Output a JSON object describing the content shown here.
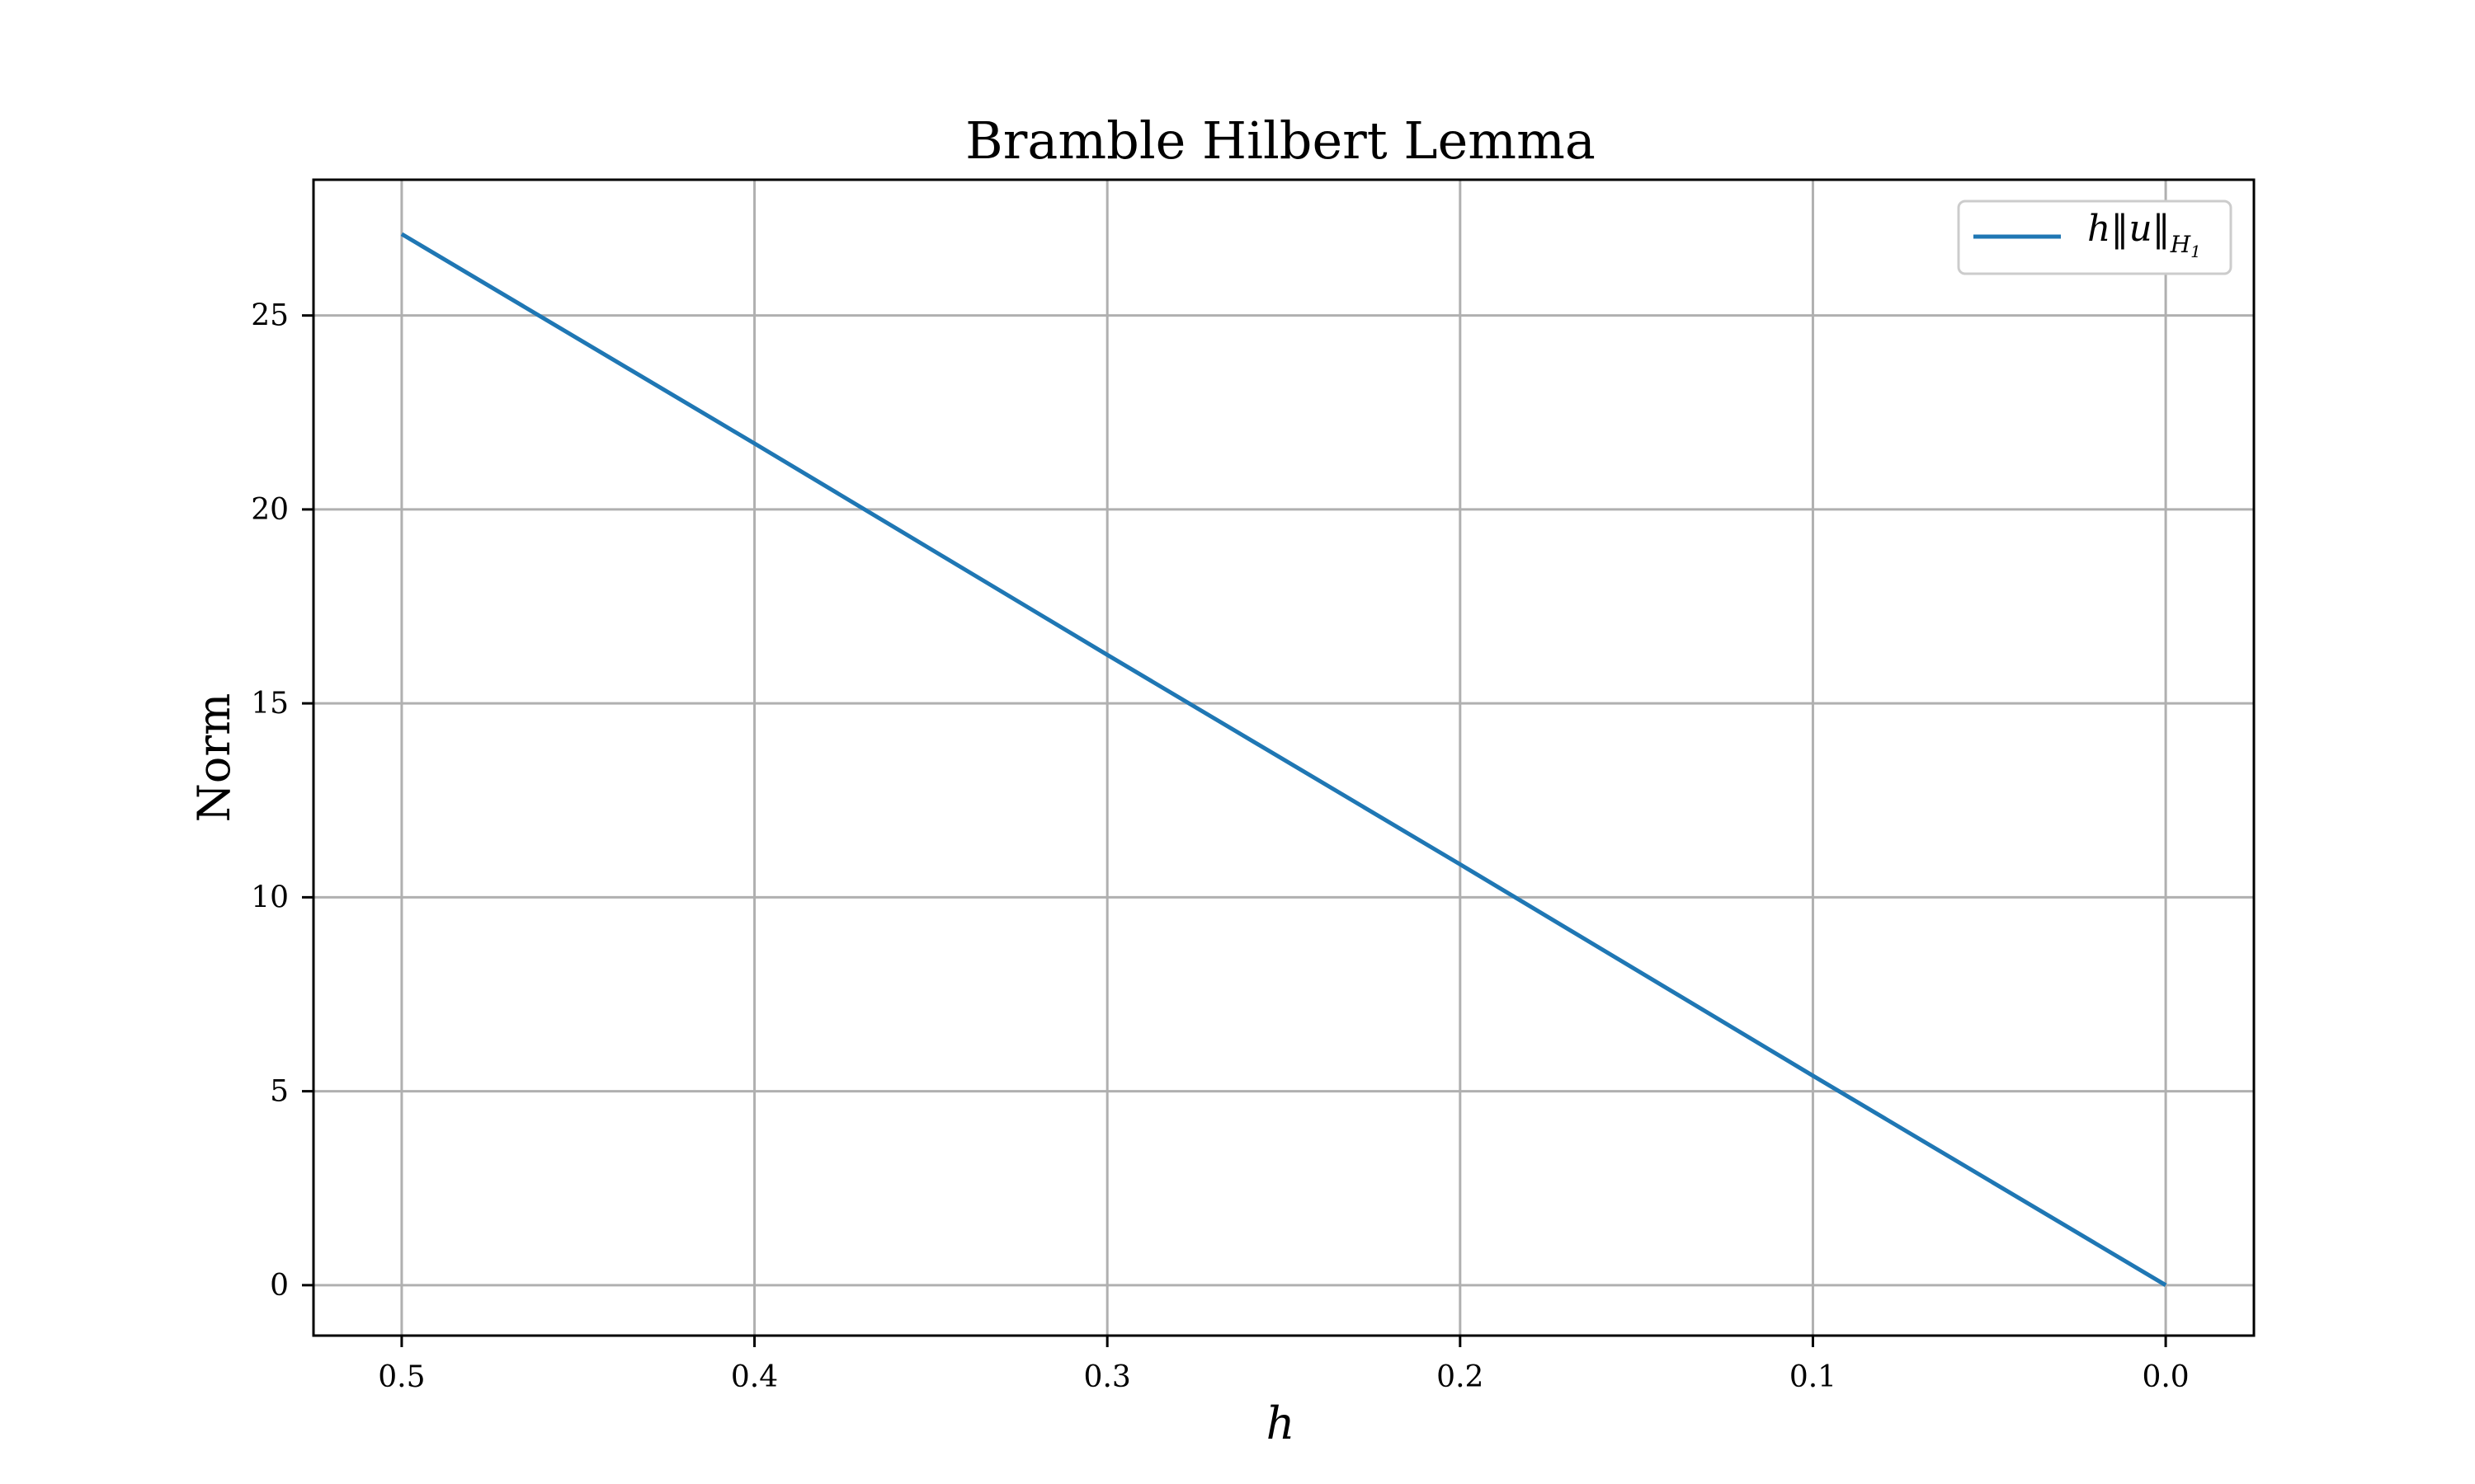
{
  "chart_data": {
    "type": "line",
    "title": "Bramble Hilbert Lemma",
    "xlabel": "h",
    "ylabel": "Norm",
    "x_reversed": true,
    "xlim": [
      0.525,
      -0.025
    ],
    "ylim": [
      -1.3,
      28.5
    ],
    "x_ticks": [
      0.5,
      0.4,
      0.3,
      0.2,
      0.1,
      0.0
    ],
    "x_tick_labels": [
      "0.5",
      "0.4",
      "0.3",
      "0.2",
      "0.1",
      "0.0"
    ],
    "y_ticks": [
      0,
      5,
      10,
      15,
      20,
      25
    ],
    "y_tick_labels": [
      "0",
      "5",
      "10",
      "15",
      "20",
      "25"
    ],
    "grid": true,
    "legend_position": "top-right",
    "series": [
      {
        "name": "h‖u‖H1",
        "color": "#1f77b4",
        "x": [
          0.5,
          0.4,
          0.3,
          0.2,
          0.1,
          0.0
        ],
        "y": [
          27.1,
          21.7,
          16.25,
          10.85,
          5.4,
          0.0
        ]
      }
    ]
  }
}
